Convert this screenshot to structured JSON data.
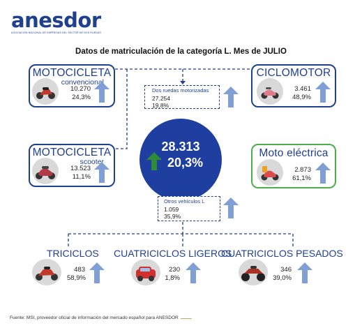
{
  "logo": {
    "name": "anesdor",
    "tagline": "ASOCIACIÓN NACIONAL DE EMPRESAS DEL SECTOR DE DOS RUEDAS"
  },
  "title": "Datos de matriculación de la categoría L. Mes de JULIO",
  "total": {
    "value": "28.313",
    "change": "20,3%"
  },
  "categories": {
    "moto_convencional": {
      "title": "MOTOCICLETA",
      "subtitle": "convencional",
      "value": "10.270",
      "share": "24,3%",
      "icon": "motorcycle-icon"
    },
    "moto_scooter": {
      "title": "MOTOCICLETA",
      "subtitle": "scooter",
      "value": "13.523",
      "share": "11,1%",
      "icon": "scooter-icon"
    },
    "ciclomotor": {
      "title": "CICLOMOTOR",
      "value": "3.461",
      "share": "48,9%",
      "icon": "moped-icon"
    },
    "moto_electrica": {
      "title": "Moto eléctrica",
      "value": "2.873",
      "share": "61,1%",
      "icon": "electric-scooter-icon"
    },
    "dos_ruedas": {
      "label": "Dos ruedas motorizadas",
      "value": "27.254",
      "share": "19,8%"
    },
    "otros": {
      "label": "Otros vehículos L",
      "value": "1.059",
      "share": "35,9%"
    },
    "triciclos": {
      "title": "TRICICLOS",
      "value": "483",
      "share": "58,9%",
      "icon": "trike-icon"
    },
    "cuatriciclos_ligeros": {
      "title": "CUATRICICLOS LIGEROS",
      "value": "230",
      "share": "1,8%",
      "icon": "microcar-icon"
    },
    "cuatriciclos_pesados": {
      "title": "CUATRICICLOS PESADOS",
      "value": "346",
      "share": "39,0%",
      "icon": "quad-icon"
    }
  },
  "colors": {
    "brand": "#1f3f8f",
    "circle": "#1f3fa0",
    "arrow": "#7f9fd6",
    "green": "#4caf50",
    "up_green": "#2e8b3a"
  },
  "footer": {
    "text": "Fuente: MSI, proveedor oficial de información del mercado español para ANESDOR"
  }
}
